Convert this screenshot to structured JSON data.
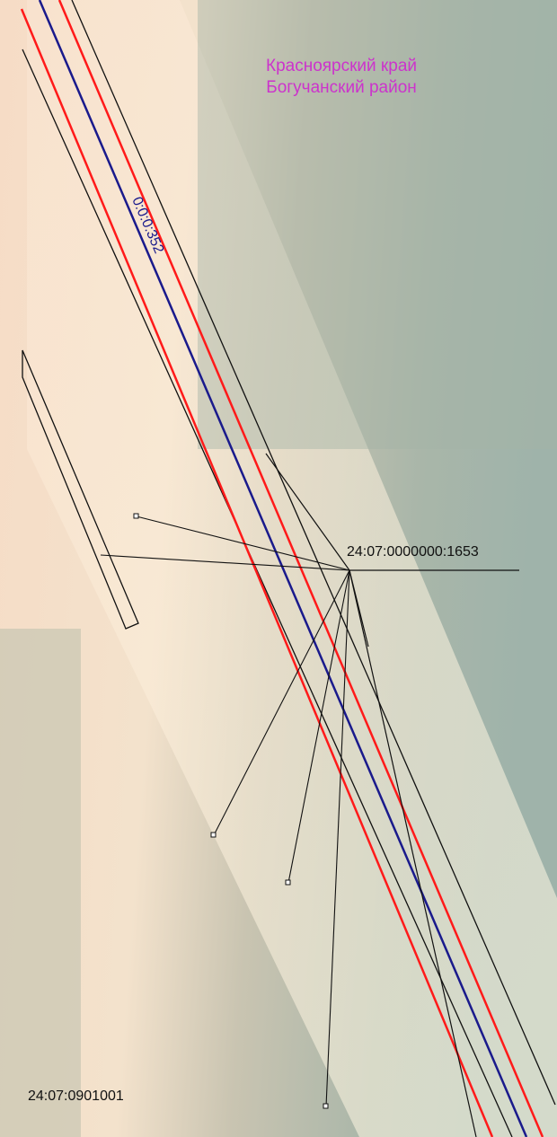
{
  "region": {
    "line1": "Красноярский край",
    "line2": "Богучанский район"
  },
  "road_label": "0:0:0:352",
  "parcel_number": "24:07:0000000:1653",
  "quarter_number": "24:07:0901001",
  "colors": {
    "region_text": "#cc33cc",
    "centerline": "#1a1a8c",
    "red_line": "#ff1a1a",
    "boundary": "#111111"
  }
}
